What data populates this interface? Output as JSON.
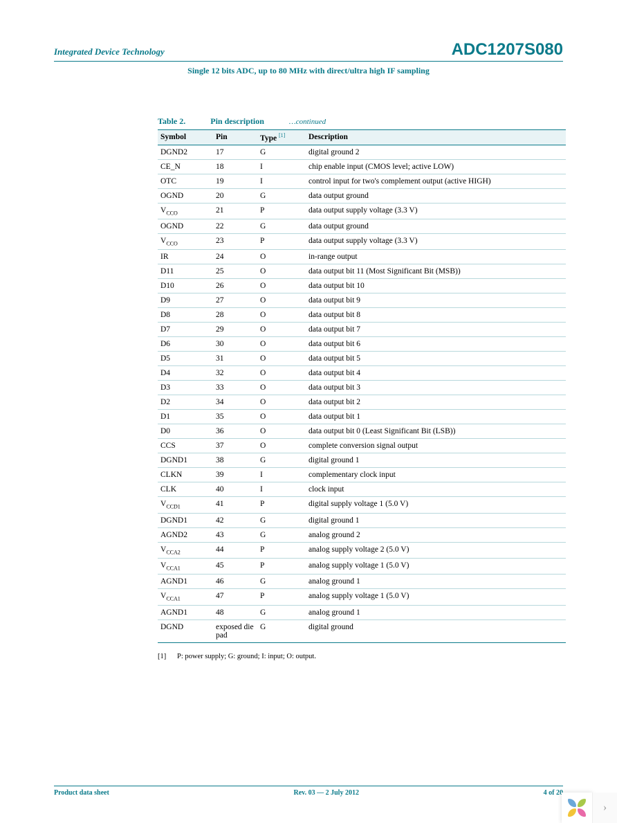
{
  "header": {
    "company": "Integrated Device Technology",
    "part": "ADC1207S080",
    "subtitle": "Single 12 bits ADC, up to 80 MHz with direct/ultra high IF sampling"
  },
  "table": {
    "caption_label": "Table 2.",
    "caption_title": "Pin description",
    "caption_cont": "…continued",
    "columns": [
      "Symbol",
      "Pin",
      "Type",
      "Description"
    ],
    "type_note_ref": "[1]",
    "rows": [
      {
        "sym": "DGND2",
        "pin": "17",
        "type": "G",
        "desc": "digital ground 2"
      },
      {
        "sym": "CE_N",
        "pin": "18",
        "type": "I",
        "desc": "chip enable input (CMOS level; active LOW)"
      },
      {
        "sym": "OTC",
        "pin": "19",
        "type": "I",
        "desc": "control input for two's complement output (active HIGH)"
      },
      {
        "sym": "OGND",
        "pin": "20",
        "type": "G",
        "desc": "data output ground"
      },
      {
        "sym": "V",
        "sub": "CCO",
        "pin": "21",
        "type": "P",
        "desc": "data output supply voltage (3.3 V)"
      },
      {
        "sym": "OGND",
        "pin": "22",
        "type": "G",
        "desc": "data output ground"
      },
      {
        "sym": "V",
        "sub": "CCO",
        "pin": "23",
        "type": "P",
        "desc": "data output supply voltage (3.3 V)"
      },
      {
        "sym": "IR",
        "pin": "24",
        "type": "O",
        "desc": "in-range output"
      },
      {
        "sym": "D11",
        "pin": "25",
        "type": "O",
        "desc": "data output bit 11 (Most Significant Bit (MSB))"
      },
      {
        "sym": "D10",
        "pin": "26",
        "type": "O",
        "desc": "data output bit 10"
      },
      {
        "sym": "D9",
        "pin": "27",
        "type": "O",
        "desc": "data output bit 9"
      },
      {
        "sym": "D8",
        "pin": "28",
        "type": "O",
        "desc": "data output bit 8"
      },
      {
        "sym": "D7",
        "pin": "29",
        "type": "O",
        "desc": "data output bit 7"
      },
      {
        "sym": "D6",
        "pin": "30",
        "type": "O",
        "desc": "data output bit 6"
      },
      {
        "sym": "D5",
        "pin": "31",
        "type": "O",
        "desc": "data output bit 5"
      },
      {
        "sym": "D4",
        "pin": "32",
        "type": "O",
        "desc": "data output bit 4"
      },
      {
        "sym": "D3",
        "pin": "33",
        "type": "O",
        "desc": "data output bit 3"
      },
      {
        "sym": "D2",
        "pin": "34",
        "type": "O",
        "desc": "data output bit 2"
      },
      {
        "sym": "D1",
        "pin": "35",
        "type": "O",
        "desc": "data output bit 1"
      },
      {
        "sym": "D0",
        "pin": "36",
        "type": "O",
        "desc": "data output bit 0 (Least Significant Bit (LSB))"
      },
      {
        "sym": "CCS",
        "pin": "37",
        "type": "O",
        "desc": "complete conversion signal output"
      },
      {
        "sym": "DGND1",
        "pin": "38",
        "type": "G",
        "desc": "digital ground 1"
      },
      {
        "sym": "CLKN",
        "pin": "39",
        "type": "I",
        "desc": "complementary clock input"
      },
      {
        "sym": "CLK",
        "pin": "40",
        "type": "I",
        "desc": "clock input"
      },
      {
        "sym": "V",
        "sub": "CCD1",
        "pin": "41",
        "type": "P",
        "desc": "digital supply voltage 1 (5.0 V)"
      },
      {
        "sym": "DGND1",
        "pin": "42",
        "type": "G",
        "desc": "digital ground 1"
      },
      {
        "sym": "AGND2",
        "pin": "43",
        "type": "G",
        "desc": "analog ground 2"
      },
      {
        "sym": "V",
        "sub": "CCA2",
        "pin": "44",
        "type": "P",
        "desc": "analog supply voltage 2 (5.0 V)"
      },
      {
        "sym": "V",
        "sub": "CCA1",
        "pin": "45",
        "type": "P",
        "desc": "analog supply voltage 1 (5.0 V)"
      },
      {
        "sym": "AGND1",
        "pin": "46",
        "type": "G",
        "desc": "analog ground 1"
      },
      {
        "sym": "V",
        "sub": "CCA1",
        "pin": "47",
        "type": "P",
        "desc": "analog supply voltage 1 (5.0 V)"
      },
      {
        "sym": "AGND1",
        "pin": "48",
        "type": "G",
        "desc": "analog ground 1"
      },
      {
        "sym": "DGND",
        "pin": "exposed die pad",
        "type": "G",
        "desc": "digital ground"
      }
    ]
  },
  "footnote": {
    "idx": "[1]",
    "text": "P: power supply; G: ground; I: input; O: output."
  },
  "footer": {
    "left": "Product data sheet",
    "center": "Rev. 03 — 2 July 2012",
    "right": "4 of 20"
  },
  "corner": {
    "petal_colors": [
      "#6aa8d8",
      "#a8c94a",
      "#f2c438",
      "#e96aa8"
    ],
    "arrow": "›"
  }
}
